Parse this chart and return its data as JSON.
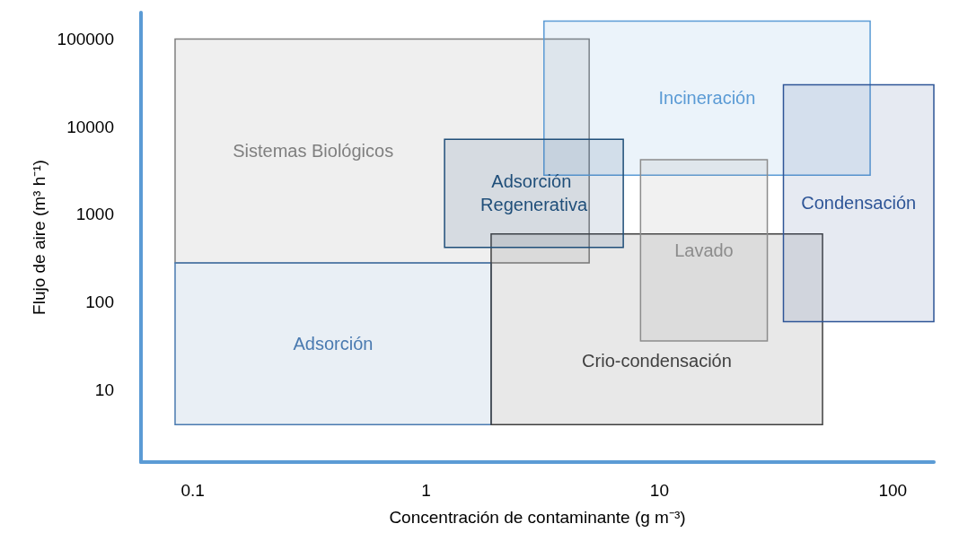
{
  "chart_data": {
    "type": "line",
    "xlabel": "Concentración de contaminante (g m⁻³)",
    "ylabel": "Flujo de aire (m³ h⁻¹)",
    "log": "xy",
    "xlim": [
      0.06,
      150
    ],
    "ylim": [
      1.5,
      200000
    ],
    "xticks": [
      0.1,
      1,
      10,
      100
    ],
    "yticks": [
      10,
      100,
      1000,
      10000,
      100000
    ],
    "series": [
      {
        "name": "Sistemas Biológicos",
        "color": "#7f7f7f",
        "x": [
          0.084,
          5
        ],
        "values": [
          null,
          null
        ],
        "lower": [
          280,
          280
        ],
        "upper": [
          100000,
          100000
        ]
      },
      {
        "name": "Adsorción",
        "color": "#4a7ab0",
        "x": [
          0.084,
          1.9
        ],
        "values": [
          null,
          null
        ],
        "lower": [
          4,
          4
        ],
        "upper": [
          280,
          280
        ]
      },
      {
        "name": "Crio-condensación",
        "color": "#404040",
        "x": [
          1.9,
          50
        ],
        "values": [
          null,
          null
        ],
        "lower": [
          4,
          4
        ],
        "upper": [
          600,
          600
        ]
      },
      {
        "name": "Incineración",
        "color": "#5b9bd5",
        "x": [
          3.2,
          80
        ],
        "values": [
          null,
          null
        ],
        "lower": [
          2800,
          2800
        ],
        "upper": [
          160000,
          160000
        ]
      },
      {
        "name": "Condensación",
        "color": "#2e5597",
        "x": [
          34,
          150
        ],
        "values": [
          null,
          null
        ],
        "lower": [
          60,
          60
        ],
        "upper": [
          30000,
          30000
        ]
      },
      {
        "name": "Lavado",
        "color": "#8c8c8c",
        "x": [
          8.3,
          29
        ],
        "values": [
          null,
          null
        ],
        "lower": [
          36,
          36
        ],
        "upper": [
          4200,
          4200
        ]
      },
      {
        "name": "Adsorción Regenerativa",
        "color": "#1f4e79",
        "x": [
          1.2,
          7
        ],
        "values": [
          null,
          null
        ],
        "lower": [
          420,
          420
        ],
        "upper": [
          7200,
          7200
        ]
      }
    ]
  }
}
